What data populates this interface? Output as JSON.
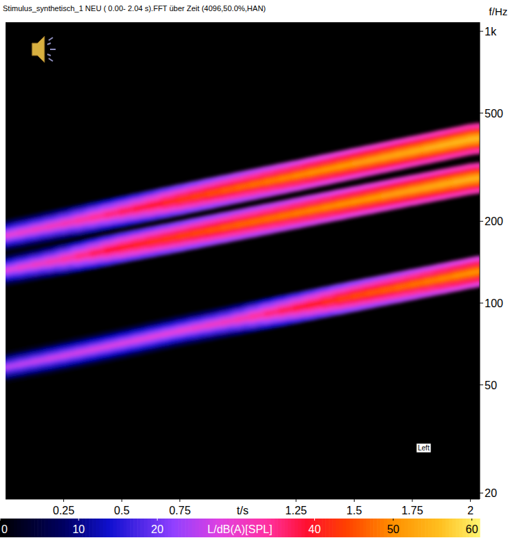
{
  "chart_data": {
    "type": "spectrogram",
    "title": "Stimulus_synthetisch_1 NEU ( 0.00- 2.04 s).FFT über Zeit (4096,50.0%,HAN)",
    "x_label": "t/s",
    "y_label": "f/Hz",
    "annotation": "Left",
    "log": "y",
    "xlim": [
      0,
      2.04
    ],
    "xticks": [
      0.25,
      0.5,
      0.75,
      1.25,
      1.5,
      1.75,
      2
    ],
    "ylim": [
      19,
      1080
    ],
    "yticks": [
      20,
      50,
      100,
      200,
      500,
      {
        "value": 1000,
        "label": "1k"
      }
    ],
    "colorbar": {
      "label": "L/dB(A)[SPL]",
      "range": [
        0,
        61
      ],
      "ticks": [
        0,
        10,
        20,
        40,
        50,
        60
      ]
    },
    "series": [
      {
        "x": [
          0,
          0.25,
          0.5,
          0.75,
          1,
          1.25,
          1.5,
          1.75,
          2,
          2.04
        ],
        "values": [
          177,
          196,
          217,
          240,
          266,
          294,
          326,
          361,
          400,
          404
        ],
        "levels": [
          28,
          31,
          36,
          42,
          46,
          49,
          51,
          53,
          55,
          55
        ]
      },
      {
        "x": [
          0,
          0.25,
          0.5,
          0.75,
          1,
          1.25,
          1.5,
          1.75,
          2,
          2.04
        ],
        "values": [
          132,
          145,
          160,
          176,
          194,
          214,
          236,
          260,
          286,
          289
        ],
        "levels": [
          27,
          32,
          40,
          43,
          46,
          48,
          50,
          52,
          54,
          54
        ]
      },
      {
        "x": [
          0,
          0.25,
          0.5,
          0.75,
          1,
          1.25,
          1.5,
          1.75,
          2,
          2.04
        ],
        "values": [
          58,
          64,
          71,
          79,
          87,
          96,
          106,
          117,
          129,
          131
        ],
        "levels": [
          24,
          26,
          27,
          28,
          31,
          38,
          44,
          47,
          50,
          50
        ]
      }
    ]
  }
}
